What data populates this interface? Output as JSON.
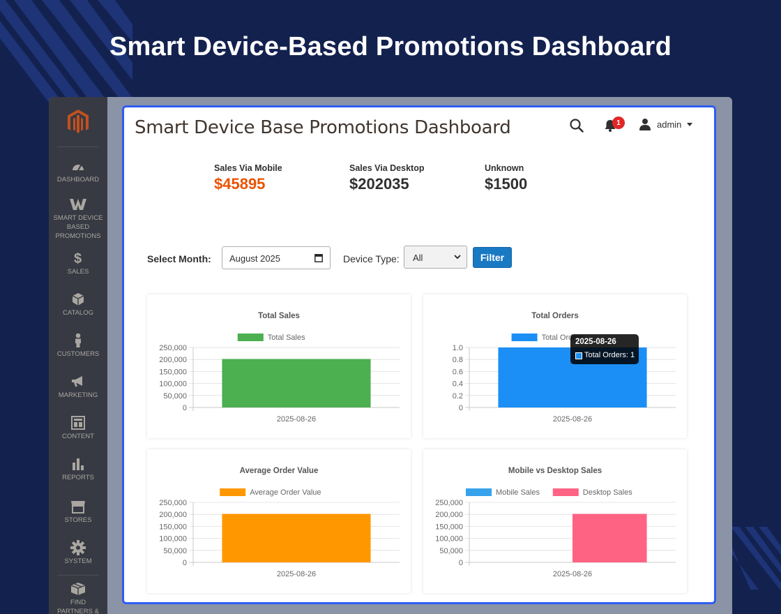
{
  "banner": {
    "title": "Smart Device-Based Promotions Dashboard"
  },
  "sidebar": {
    "logo": "magento-logo-icon",
    "items": [
      {
        "label": "DASHBOARD",
        "icon": "gauge-icon"
      },
      {
        "label": "SMART DEVICE BASED PROMOTIONS",
        "icon": "w-logo-icon"
      },
      {
        "label": "SALES",
        "icon": "dollar-icon"
      },
      {
        "label": "CATALOG",
        "icon": "cube-icon"
      },
      {
        "label": "CUSTOMERS",
        "icon": "person-icon"
      },
      {
        "label": "MARKETING",
        "icon": "megaphone-icon"
      },
      {
        "label": "CONTENT",
        "icon": "layout-icon"
      },
      {
        "label": "REPORTS",
        "icon": "bar-chart-icon"
      },
      {
        "label": "STORES",
        "icon": "store-icon"
      },
      {
        "label": "SYSTEM",
        "icon": "gear-icon"
      },
      {
        "label": "FIND PARTNERS & EXTENSIONS",
        "icon": "box-icon"
      }
    ]
  },
  "header": {
    "title": "Smart Device Base Promotions Dashboard",
    "notification_count": "1",
    "user": "admin"
  },
  "stats": [
    {
      "label": "Sales Via Mobile",
      "value": "$45895",
      "color": "#eb5202"
    },
    {
      "label": "Sales Via Desktop",
      "value": "$202035",
      "color": "#303030"
    },
    {
      "label": "Unknown",
      "value": "$1500",
      "color": "#303030"
    }
  ],
  "filters": {
    "month_label": "Select Month:",
    "month_value": "August 2025",
    "device_label": "Device Type:",
    "device_value": "All",
    "button": "Filter"
  },
  "tooltip": {
    "title": "2025-08-26",
    "body": "Total Orders: 1"
  },
  "chart_data": [
    {
      "type": "bar",
      "title": "Total Sales",
      "categories": [
        "2025-08-26"
      ],
      "series": [
        {
          "name": "Total Sales",
          "values": [
            202035
          ],
          "color": "#4caf50"
        }
      ],
      "yticks": [
        "250,000",
        "200,000",
        "150,000",
        "100,000",
        "50,000",
        "0"
      ],
      "ylim": [
        0,
        250000
      ],
      "legend": "top",
      "grid": true
    },
    {
      "type": "bar",
      "title": "Total Orders",
      "categories": [
        "2025-08-26"
      ],
      "series": [
        {
          "name": "Total Orders",
          "values": [
            1
          ],
          "color": "#1b8ff5"
        }
      ],
      "yticks": [
        "1.0",
        "0.8",
        "0.6",
        "0.4",
        "0.2",
        "0"
      ],
      "ylim": [
        0,
        1
      ],
      "legend": "top",
      "grid": true
    },
    {
      "type": "bar",
      "title": "Average Order Value",
      "categories": [
        "2025-08-26"
      ],
      "series": [
        {
          "name": "Average Order Value",
          "values": [
            202035
          ],
          "color": "#ff9800"
        }
      ],
      "yticks": [
        "250,000",
        "200,000",
        "150,000",
        "100,000",
        "50,000",
        "0"
      ],
      "ylim": [
        0,
        250000
      ],
      "legend": "top",
      "grid": true
    },
    {
      "type": "bar",
      "title": "Mobile vs Desktop Sales",
      "categories": [
        "2025-08-26"
      ],
      "series": [
        {
          "name": "Mobile Sales",
          "values": [
            0
          ],
          "color": "#36a2eb"
        },
        {
          "name": "Desktop Sales",
          "values": [
            202035
          ],
          "color": "#ff6384"
        }
      ],
      "yticks": [
        "250,000",
        "200,000",
        "150,000",
        "100,000",
        "50,000",
        "0"
      ],
      "ylim": [
        0,
        250000
      ],
      "legend": "top",
      "grid": true
    }
  ]
}
